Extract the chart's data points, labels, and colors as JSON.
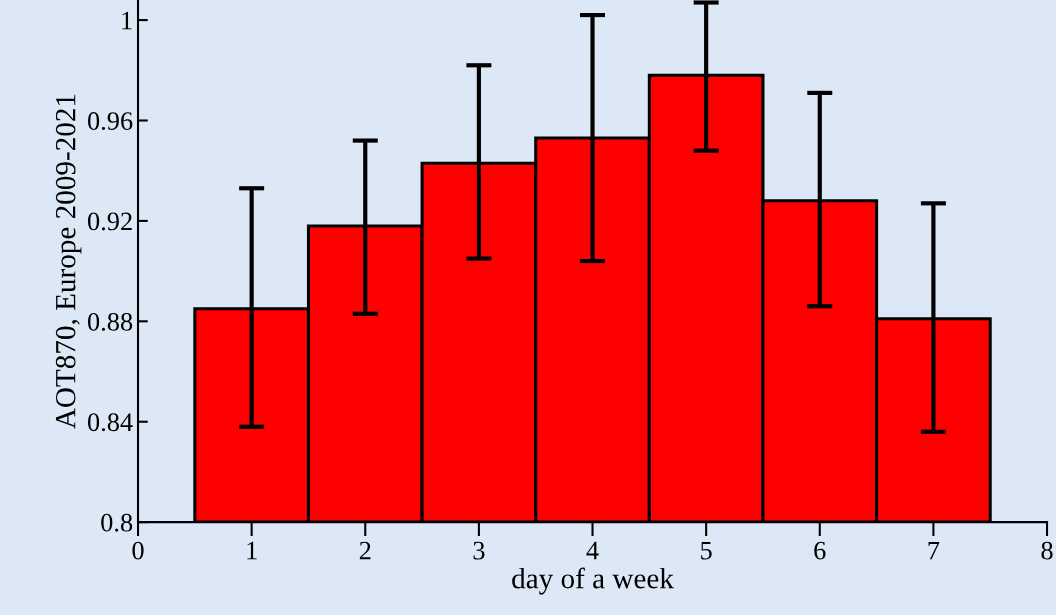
{
  "chart_data": {
    "type": "histogram",
    "bins": [
      0.5,
      1.5,
      2.5,
      3.5,
      4.5,
      5.5,
      6.5,
      7.5
    ],
    "values": [
      0.885,
      0.918,
      0.943,
      0.953,
      0.978,
      0.928,
      0.881
    ],
    "errors": [
      [
        0.838,
        0.933
      ],
      [
        0.883,
        0.952
      ],
      [
        0.905,
        0.982
      ],
      [
        0.904,
        1.002
      ],
      [
        0.948,
        1.007
      ],
      [
        0.886,
        0.971
      ],
      [
        0.836,
        0.927
      ]
    ],
    "color": "#ff0000",
    "xlabel": "day of a week",
    "ylabel": "AOT870, Europe 2009-2021",
    "xlim": [
      0,
      8
    ],
    "xticks": [
      0,
      1,
      2,
      3,
      4,
      5,
      6,
      7,
      8
    ],
    "ylim": [
      0.8,
      1.008
    ],
    "yticks": [
      0.8,
      0.84,
      0.88,
      0.92,
      0.96,
      1
    ],
    "grid": false,
    "legend": false
  }
}
